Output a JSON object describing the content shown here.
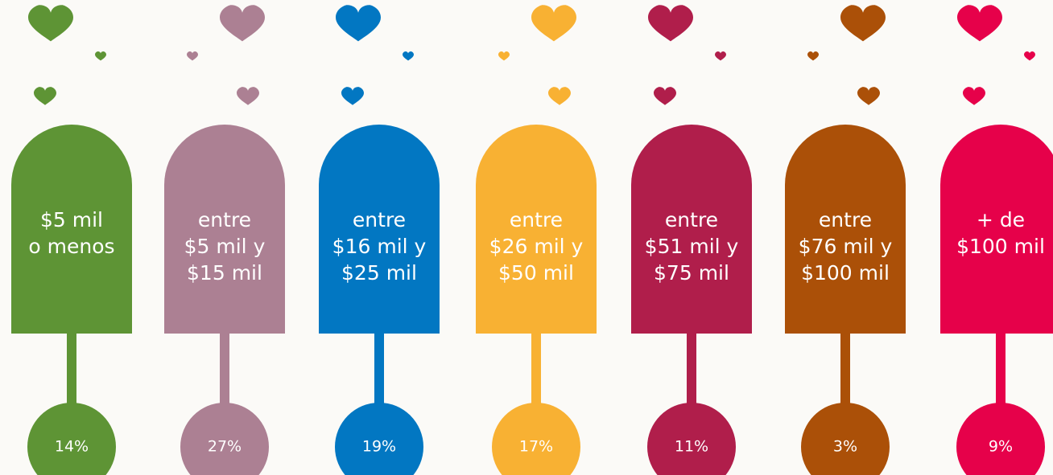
{
  "items": [
    {
      "lines": [
        "$5 mil",
        "o menos"
      ],
      "percent": "14%",
      "color": "#5e9435"
    },
    {
      "lines": [
        "entre",
        "$5 mil y",
        "$15 mil"
      ],
      "percent": "27%",
      "color": "#ac8093"
    },
    {
      "lines": [
        "entre",
        "$16 mil y",
        "$25 mil"
      ],
      "percent": "19%",
      "color": "#0277c2"
    },
    {
      "lines": [
        "entre",
        "$26 mil y",
        "$50 mil"
      ],
      "percent": "17%",
      "color": "#f8b133"
    },
    {
      "lines": [
        "entre",
        "$51 mil y",
        "$75 mil"
      ],
      "percent": "11%",
      "color": "#b01e4b"
    },
    {
      "lines": [
        "entre",
        "$76 mil y",
        "$100 mil"
      ],
      "percent": "3%",
      "color": "#ab5008"
    },
    {
      "lines": [
        "+ de",
        "$100 mil"
      ],
      "percent": "9%",
      "color": "#e6014a"
    }
  ]
}
